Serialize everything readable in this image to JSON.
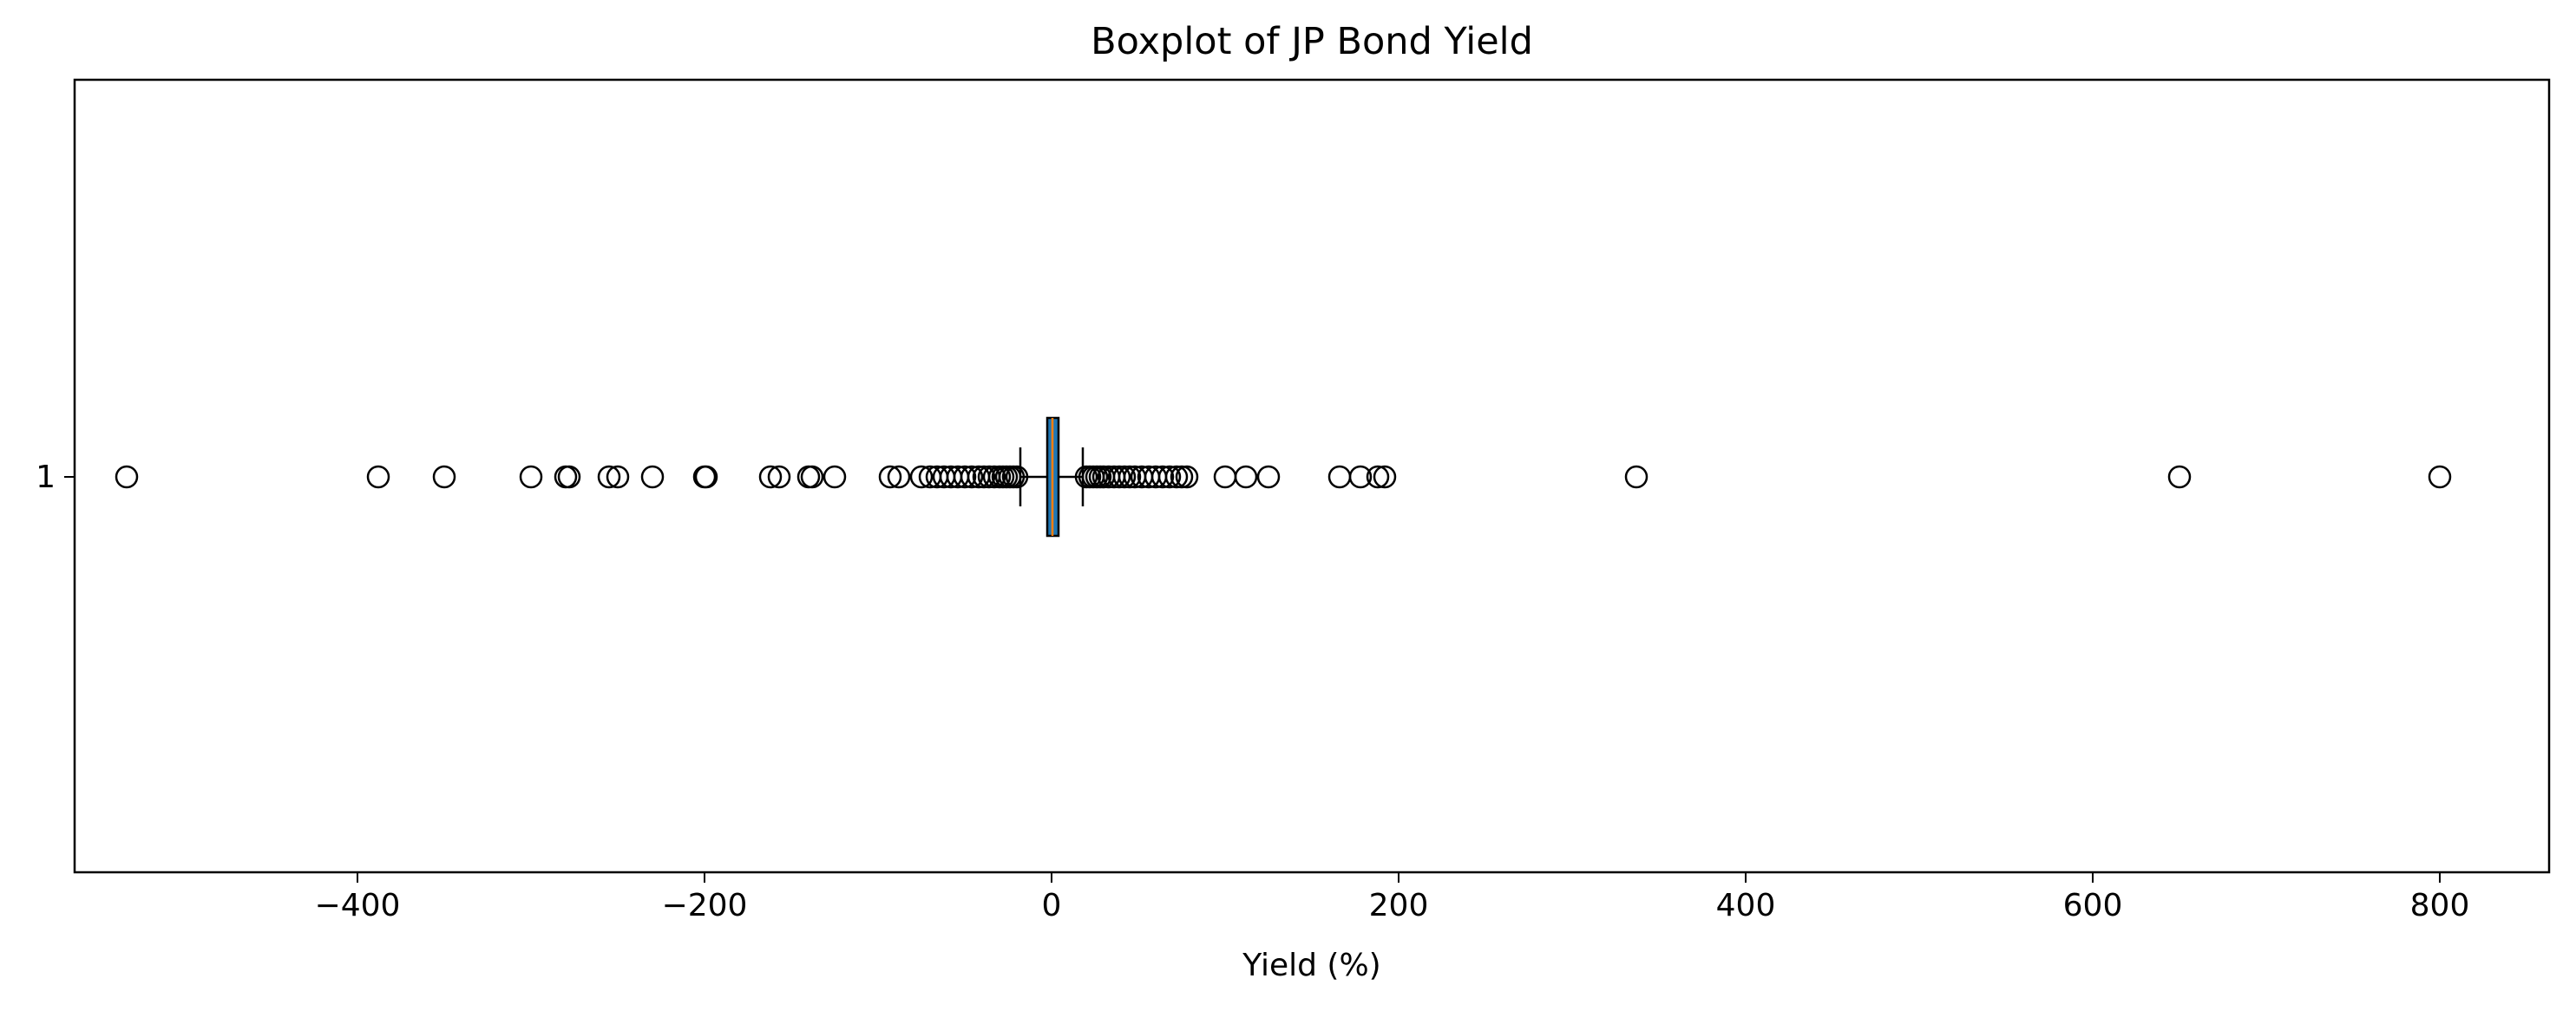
{
  "chart_data": {
    "type": "boxplot",
    "orientation": "horizontal",
    "title": "Boxplot of JP Bond Yield",
    "xlabel": "Yield (%)",
    "ylabel": "",
    "category_labels": [
      "1"
    ],
    "xlim": [
      -563,
      863
    ],
    "xticks": [
      -400,
      -200,
      0,
      200,
      400,
      600,
      800
    ],
    "xtick_labels": [
      "−400",
      "−200",
      "0",
      "200",
      "400",
      "600",
      "800"
    ],
    "grid": false,
    "colors": {
      "box_face": "#1f77b4",
      "median": "#ff7f0e",
      "outline": "#000000"
    },
    "box": {
      "category": "1",
      "q1": -2.5,
      "median": 0.5,
      "q3": 4.0,
      "whisker_low": -18,
      "whisker_high": 18
    },
    "outliers": [
      -533,
      -388,
      -350,
      -300,
      -280,
      -278,
      -255,
      -250,
      -230,
      -200,
      -199,
      -162,
      -157,
      -140,
      -138,
      -125,
      -93,
      -88,
      -75,
      -70,
      -66,
      -62,
      -58,
      -54,
      -50,
      -46,
      -42,
      -39,
      -36,
      -33,
      -30,
      -28,
      -26,
      -24,
      -22,
      -20,
      20,
      22,
      24,
      26,
      28,
      30,
      33,
      36,
      39,
      42,
      45,
      48,
      52,
      56,
      60,
      64,
      68,
      72,
      75,
      78,
      100,
      112,
      125,
      166,
      178,
      188,
      192,
      337,
      650,
      800
    ]
  }
}
